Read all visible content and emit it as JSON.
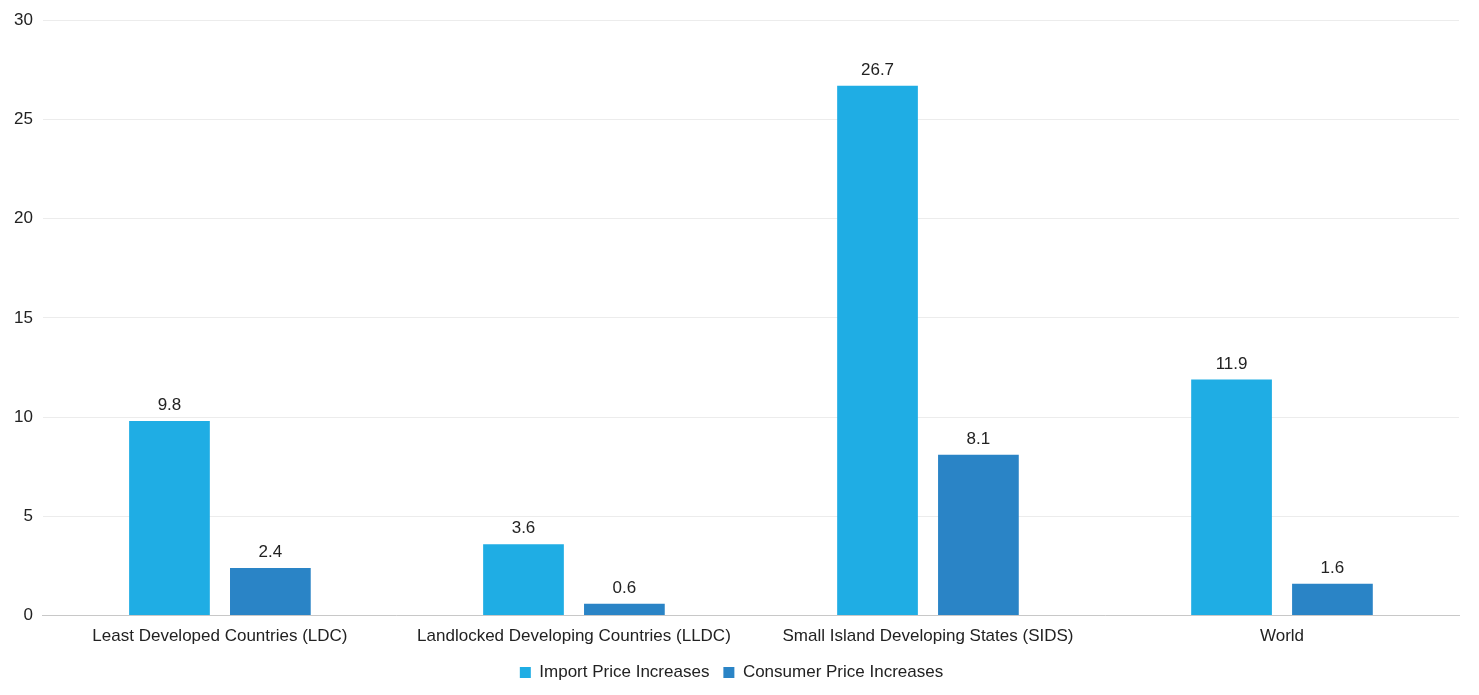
{
  "chart_data": {
    "type": "bar",
    "categories": [
      "Least Developed Countries (LDC)",
      "Landlocked Developing Countries (LLDC)",
      "Small Island Developing States (SIDS)",
      "World"
    ],
    "series": [
      {
        "name": "Import Price Increases",
        "color": "#1fade4",
        "values": [
          9.8,
          3.6,
          26.7,
          11.9
        ]
      },
      {
        "name": "Consumer Price Increases",
        "color": "#2a84c6",
        "values": [
          2.4,
          0.6,
          8.1,
          1.6
        ]
      }
    ],
    "ylim": [
      0,
      30
    ],
    "yticks": [
      0,
      5,
      10,
      15,
      20,
      25,
      30
    ],
    "grid": true,
    "legend": "bottom",
    "data_labels": true
  }
}
